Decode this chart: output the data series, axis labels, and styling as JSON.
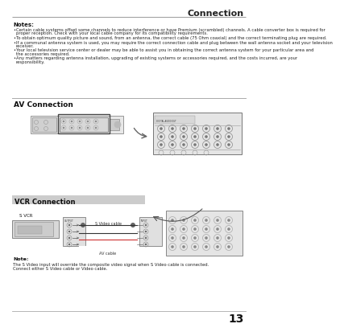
{
  "title": "Connection",
  "page_number": "13",
  "bg_color": "#ffffff",
  "notes_header": "Notes:",
  "notes_bullets": [
    "Certain cable systems offset some channels to reduce interference or have Premium (scrambled) channels. A cable converter box is required for proper reception. Check with your local cable company for its compatibility requirements.",
    "To obtain optimum quality picture and sound, from an antenna, the correct cable (75 Ohm coaxial) and the correct terminating plug are required.",
    "If a communal antenna system is used, you may require the correct connection cable and plug between the wall antenna socket and your television receiver.",
    "Your local television service center or dealer may be able to assist you in obtaining the correct antenna system for your particular area and the accessories required.",
    "Any matters regarding antenna installation, upgrading of existing systems or accessories required, and the costs incurred, are your responsibility."
  ],
  "section1_title": "AV Connection",
  "section2_title": "VCR Connection",
  "vcr_label": "S VCR",
  "cable1_label": "S Video cable",
  "cable2_label": "AV cable",
  "note_header": "Note:",
  "note_text1": "The S Video input will override the composite video signal when S Video cable is connected.",
  "note_text2": "Connect either S Video cable or Video cable."
}
